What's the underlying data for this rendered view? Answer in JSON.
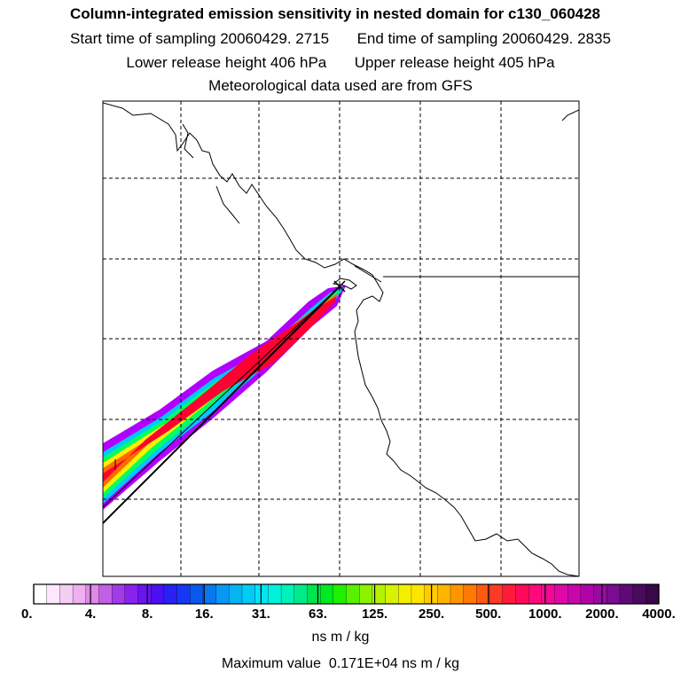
{
  "title": "Column-integrated emission sensitivity in nested domain for c130_060428",
  "sampling": {
    "start_label": "Start time of sampling",
    "start_value": "20060429.  2715",
    "end_label": "End time of sampling",
    "end_value": "20060429.  2835"
  },
  "release": {
    "lower_label": "Lower release height",
    "lower_value": "406 hPa",
    "upper_label": "Upper release height",
    "upper_value": "405 hPa"
  },
  "met_note": "Meteorological data used are from GFS",
  "colorbar": {
    "tick_labels": [
      "0.",
      "4.",
      "8.",
      "16.",
      "31.",
      "63.",
      "125.",
      "250.",
      "500.",
      "1000.",
      "2000.",
      "4000."
    ],
    "units": "ns m / kg",
    "colors": [
      "#ffffff",
      "#fde8fb",
      "#f6cdf4",
      "#eeb0ee",
      "#de8ae6",
      "#c260e4",
      "#a23ae8",
      "#8a22ee",
      "#6a14ee",
      "#4a10f0",
      "#2a20f4",
      "#1438f4",
      "#0a58f0",
      "#0878f0",
      "#0898f2",
      "#06b4f2",
      "#02ccf6",
      "#00e6f4",
      "#00f2dc",
      "#00f2b8",
      "#00ea88",
      "#00e450",
      "#00ea20",
      "#20f000",
      "#58f200",
      "#8cf200",
      "#b4f200",
      "#d8f200",
      "#f2f000",
      "#ffe400",
      "#ffcc00",
      "#ffb400",
      "#ff9600",
      "#ff7a00",
      "#ff5a10",
      "#ff3a24",
      "#ff1a3a",
      "#ff0a5a",
      "#ff0a7a",
      "#f00a94",
      "#e008a8",
      "#c806ac",
      "#b004a8",
      "#980aa0",
      "#7a0c90",
      "#5e0a74",
      "#4a0a5e",
      "#380848"
    ]
  },
  "max_value": {
    "label": "Maximum value",
    "value": "0.171E+04 ns m / kg"
  },
  "map": {
    "release_marker": "x-marker",
    "plume_colors": [
      "#b000ff",
      "#00c8ff",
      "#00ff60",
      "#ffee00",
      "#ff6a00",
      "#ff0030"
    ]
  }
}
